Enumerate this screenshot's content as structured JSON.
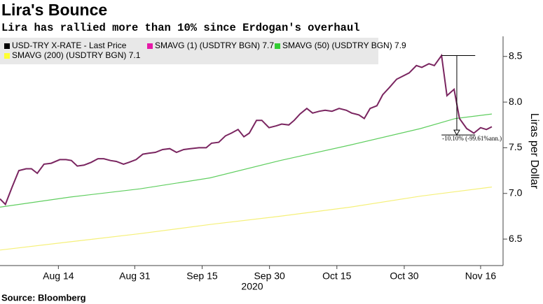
{
  "chart_data": {
    "type": "line",
    "title": "Lira's Bounce",
    "subtitle": "Lira has rallied more than 10% since Erdogan's overhaul",
    "y_label": "Liras per Dollar",
    "x_year": "2020",
    "source": "Source: Bloomberg",
    "xlim": [
      214,
      326
    ],
    "xticks": [
      {
        "value": 227,
        "label": "Aug 14"
      },
      {
        "value": 244,
        "label": "Aug 31"
      },
      {
        "value": 259,
        "label": "Sep 15"
      },
      {
        "value": 274,
        "label": "Sep 30"
      },
      {
        "value": 289,
        "label": "Oct 15"
      },
      {
        "value": 304,
        "label": "Oct 30"
      },
      {
        "value": 321,
        "label": "Nov 16"
      }
    ],
    "ylim": [
      6.21,
      8.72
    ],
    "yticks": [
      6.5,
      {
        "value": 7,
        "label": "7.0"
      },
      7.5,
      {
        "value": 8,
        "label": "8.0"
      },
      8.5
    ],
    "legend": [
      {
        "label": "USD-TRY X-RATE - Last Price",
        "color": "#000000"
      },
      {
        "label": "SMAVG (1) (USDTRY BGN) 7.7",
        "color": "#e619a8"
      },
      {
        "label": "SMAVG (50) (USDTRY BGN) 7.9",
        "color": "#33cc33"
      },
      {
        "label": "SMAVG (200) (USDTRY BGN)  7.1",
        "color": "#ffff33"
      }
    ],
    "series": [
      {
        "color": "#7a2560",
        "x": [
          214,
          215.2,
          216.7,
          218.2,
          219.8,
          221,
          222.3,
          223.8,
          225.4,
          227.3,
          228.7,
          229.9,
          231.2,
          232.7,
          234.3,
          235.8,
          237.1,
          238.6,
          239.9,
          241.5,
          242.7,
          244.3,
          245.8,
          247.1,
          248.6,
          250.2,
          251.8,
          253.3,
          254.9,
          256.4,
          258.3,
          259.9,
          261.1,
          262.7,
          264.2,
          265.5,
          267,
          268.3,
          269.5,
          271.1,
          272.3,
          273.9,
          275.5,
          276.7,
          278.3,
          279.5,
          280.8,
          282.3,
          283.6,
          285.1,
          286.4,
          287.9,
          289.5,
          291.1,
          292.3,
          293.9,
          295.1,
          296.4,
          297.9,
          299.2,
          300.7,
          302.3,
          303.5,
          305.1,
          306.7,
          307.9,
          309.5,
          310.7,
          312.3,
          313.5,
          315.1,
          316.3,
          317.9,
          319.5,
          321,
          322.3,
          323.5
        ],
        "values": [
          6.94,
          6.88,
          7.07,
          7.25,
          7.27,
          7.27,
          7.22,
          7.32,
          7.33,
          7.37,
          7.37,
          7.36,
          7.3,
          7.31,
          7.34,
          7.38,
          7.38,
          7.36,
          7.35,
          7.32,
          7.34,
          7.37,
          7.43,
          7.44,
          7.45,
          7.48,
          7.49,
          7.45,
          7.48,
          7.49,
          7.5,
          7.5,
          7.55,
          7.56,
          7.63,
          7.66,
          7.7,
          7.62,
          7.66,
          7.8,
          7.8,
          7.72,
          7.74,
          7.76,
          7.75,
          7.8,
          7.87,
          7.93,
          7.88,
          7.9,
          7.91,
          7.9,
          7.93,
          7.91,
          7.88,
          7.86,
          7.82,
          7.93,
          7.96,
          8.08,
          8.16,
          8.25,
          8.28,
          8.32,
          8.4,
          8.38,
          8.42,
          8.4,
          8.51,
          8.07,
          8.14,
          7.82,
          7.71,
          7.66,
          7.72,
          7.7,
          7.73
        ]
      },
      {
        "color": "#5fce5f",
        "x": [
          214,
          229.6,
          245.2,
          260.8,
          276.4,
          292,
          307.6,
          315.4,
          323.5
        ],
        "values": [
          6.85,
          6.96,
          7.05,
          7.17,
          7.36,
          7.53,
          7.71,
          7.82,
          7.87
        ]
      },
      {
        "color": "#f5f07a",
        "x": [
          214,
          229.6,
          245.2,
          260.8,
          276.4,
          292,
          307.6,
          323.5
        ],
        "values": [
          6.38,
          6.47,
          6.56,
          6.66,
          6.75,
          6.85,
          6.97,
          7.07
        ]
      }
    ],
    "annotation": {
      "text": "-10.10% (-99.61%ann.)",
      "x_from": 312.3,
      "x_to": 319.8,
      "x_arrow": 315.7,
      "y_from": 8.51,
      "y_to": 7.64
    }
  }
}
